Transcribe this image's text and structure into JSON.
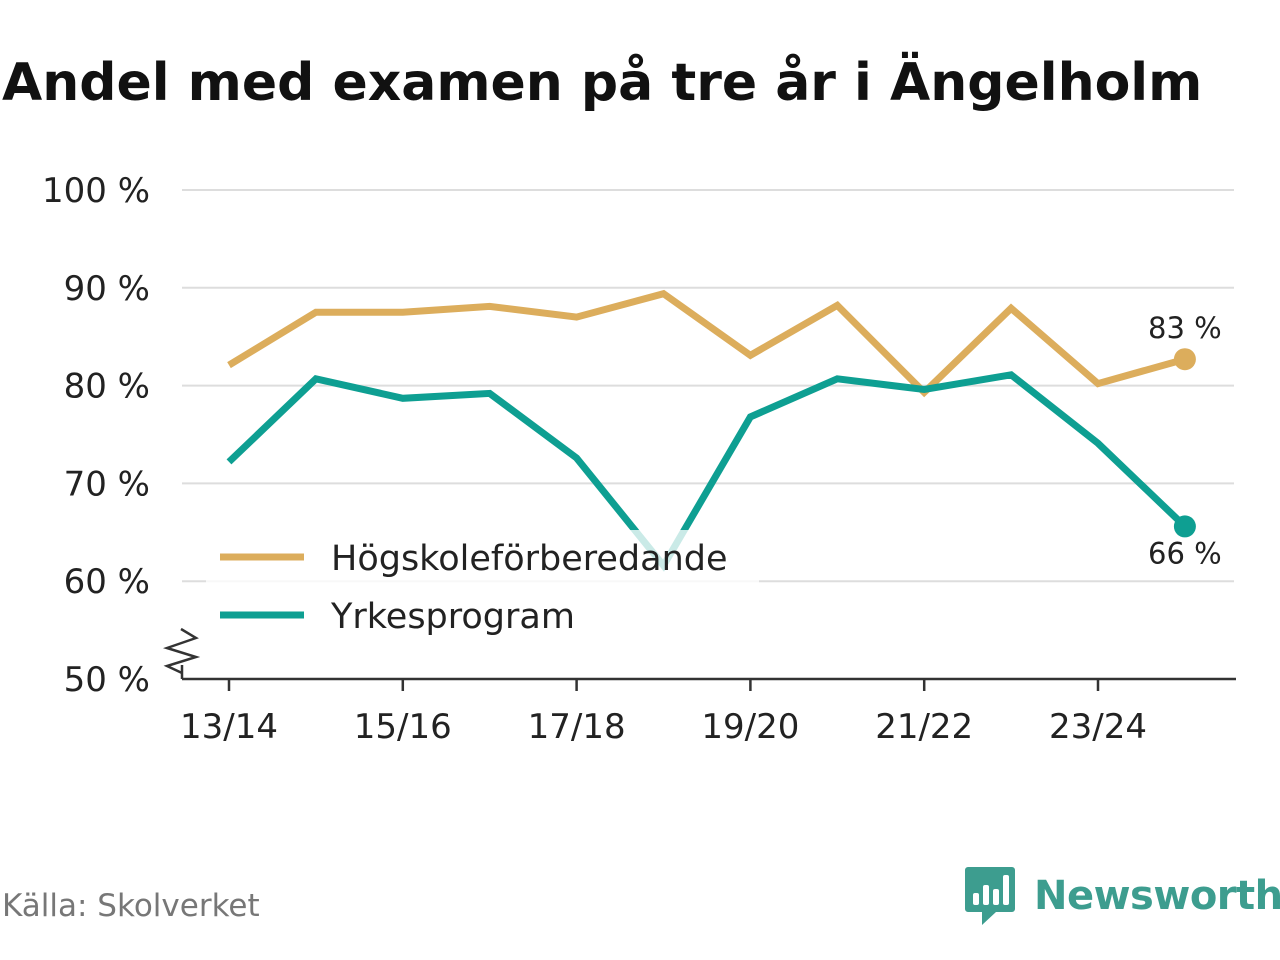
{
  "chart_data": {
    "type": "line",
    "title": "Andel med examen på tre år i Ängelholm",
    "xlabel": "",
    "ylabel": "",
    "x": [
      "13/14",
      "14/15",
      "15/16",
      "16/17",
      "17/18",
      "18/19",
      "19/20",
      "20/21",
      "21/22",
      "22/23",
      "23/24",
      "24/25"
    ],
    "x_tick_labels": [
      "13/14",
      "15/16",
      "17/18",
      "19/20",
      "21/22",
      "23/24"
    ],
    "y_tick_labels": [
      "100 %",
      "90 %",
      "80 %",
      "70 %",
      "60 %",
      "50 %"
    ],
    "y_ticks": [
      100,
      90,
      80,
      70,
      60,
      50
    ],
    "ylim": [
      50,
      100
    ],
    "y_axis_break": true,
    "grid": true,
    "legend_position": "bottom-left",
    "series": [
      {
        "name": "Högskoleförberedande",
        "color": "#dcad5c",
        "values": [
          82.1,
          87.5,
          87.5,
          88.1,
          87.0,
          89.4,
          83.1,
          88.2,
          79.3,
          87.9,
          80.2,
          82.7
        ],
        "end_label": "83 %"
      },
      {
        "name": "Yrkesprogram",
        "color": "#0e9f92",
        "values": [
          72.2,
          80.7,
          78.7,
          79.2,
          72.6,
          61.6,
          76.8,
          80.7,
          79.6,
          81.1,
          74.1,
          65.6
        ],
        "end_label": "66 %"
      }
    ],
    "source": "Källa: Skolverket"
  },
  "brand": {
    "name": "Newsworthy",
    "color": "#3d9d8f",
    "icon": "newsworthy-logo-icon"
  }
}
